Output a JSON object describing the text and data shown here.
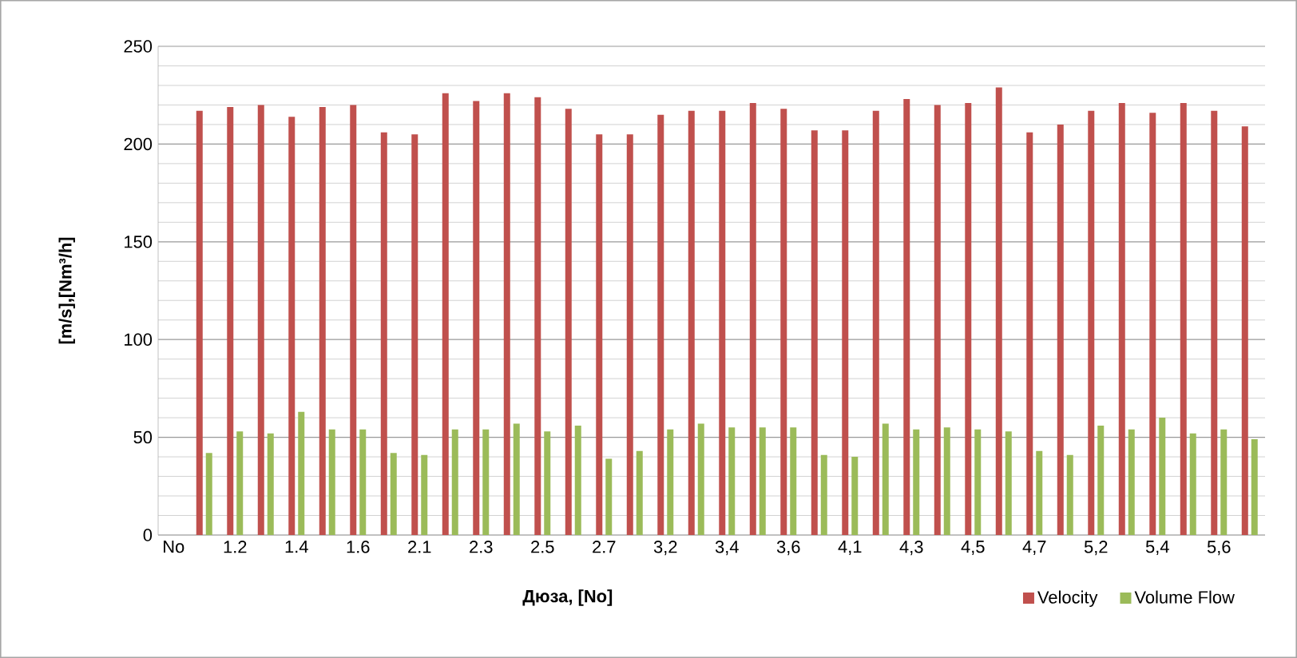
{
  "chart_data": {
    "type": "bar",
    "xlabel": "Дюза, [No]",
    "ylabel": "[m/s],[Nm³/h]",
    "categories": [
      "No",
      null,
      "1.2",
      null,
      "1.4",
      null,
      "1.6",
      null,
      "2.1",
      null,
      "2.3",
      null,
      "2.5",
      null,
      "2.7",
      null,
      "3,2",
      null,
      "3,4",
      null,
      "3,6",
      null,
      "4,1",
      null,
      "4,3",
      null,
      "4,5",
      null,
      "4,7",
      null,
      "5,2",
      null,
      "5,4",
      null,
      "5,6",
      null
    ],
    "series": [
      {
        "name": "Velocity",
        "color": "#c0504d",
        "values": [
          null,
          217,
          219,
          220,
          214,
          219,
          220,
          206,
          205,
          226,
          222,
          226,
          224,
          218,
          205,
          205,
          215,
          217,
          217,
          221,
          218,
          207,
          207,
          217,
          223,
          220,
          221,
          229,
          206,
          210,
          217,
          221,
          216,
          221,
          217,
          209
        ]
      },
      {
        "name": "Volume Flow",
        "color": "#9bbb59",
        "values": [
          null,
          42,
          53,
          52,
          63,
          54,
          54,
          42,
          41,
          54,
          54,
          57,
          53,
          56,
          39,
          43,
          54,
          57,
          55,
          55,
          55,
          41,
          40,
          57,
          54,
          55,
          54,
          53,
          43,
          41,
          56,
          54,
          60,
          52,
          54,
          49
        ]
      }
    ],
    "ylim": [
      0,
      250
    ],
    "yticks": [
      0,
      50,
      100,
      150,
      200,
      250
    ],
    "grid": "y",
    "legend": "bottom"
  }
}
